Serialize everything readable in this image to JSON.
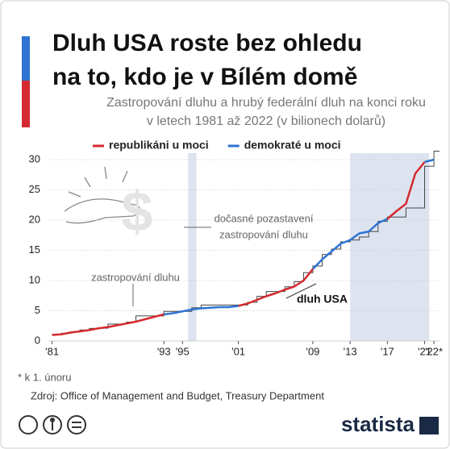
{
  "chart_data": {
    "type": "line",
    "title": [
      "Dluh USA roste bez ohledu",
      "na to, kdo je v Bílém domě"
    ],
    "subtitle": [
      "Zastropování dluhu a hrubý federální dluh na konci roku",
      "v letech 1981 až 2022 (v bilionech dolarů)"
    ],
    "x": [
      1981,
      1982,
      1983,
      1984,
      1985,
      1986,
      1987,
      1988,
      1989,
      1990,
      1991,
      1992,
      1993,
      1994,
      1995,
      1996,
      1997,
      1998,
      1999,
      2000,
      2001,
      2002,
      2003,
      2004,
      2005,
      2006,
      2007,
      2008,
      2009,
      2010,
      2011,
      2012,
      2013,
      2014,
      2015,
      2016,
      2017,
      2018,
      2019,
      2020,
      2021,
      2022
    ],
    "series": [
      {
        "name": "republikáni u moci",
        "color": "#d42a2f",
        "values": [
          1.0,
          1.1,
          1.4,
          1.6,
          1.8,
          2.1,
          2.3,
          2.6,
          2.9,
          3.2,
          3.6,
          4.0,
          4.4,
          null,
          null,
          null,
          null,
          null,
          null,
          null,
          5.8,
          6.2,
          6.8,
          7.4,
          7.9,
          8.5,
          9.0,
          10.0,
          11.9,
          null,
          null,
          null,
          null,
          null,
          null,
          null,
          20.2,
          21.5,
          22.7,
          27.7,
          29.6,
          null
        ]
      },
      {
        "name": "demokraté u moci",
        "color": "#2e73d2",
        "values": [
          null,
          null,
          null,
          null,
          null,
          null,
          null,
          null,
          null,
          null,
          null,
          null,
          4.4,
          4.6,
          4.9,
          5.2,
          5.4,
          5.5,
          5.6,
          5.6,
          5.8,
          null,
          null,
          null,
          null,
          null,
          null,
          null,
          11.9,
          13.5,
          14.8,
          16.1,
          16.7,
          17.8,
          18.1,
          19.5,
          20.2,
          null,
          null,
          null,
          29.6,
          30.0
        ]
      }
    ],
    "debt_ceiling": {
      "label": "zastropování dluhu",
      "color": "#444444",
      "values": [
        1.08,
        1.29,
        1.49,
        1.82,
        2.08,
        2.11,
        2.8,
        2.8,
        3.12,
        4.15,
        4.15,
        4.15,
        4.9,
        4.9,
        4.9,
        5.5,
        5.95,
        5.95,
        5.95,
        5.95,
        5.95,
        6.4,
        7.38,
        8.18,
        8.18,
        8.97,
        9.82,
        11.3,
        12.4,
        14.3,
        15.2,
        16.4,
        16.7,
        17.2,
        18.1,
        19.8,
        20.5,
        20.5,
        22.0,
        22.0,
        28.9,
        31.4
      ]
    },
    "suspensions": {
      "label": [
        "dočasné pozastavení",
        "zastropování dluhu"
      ],
      "color": "#dde3ef",
      "spans": [
        [
          1995.6,
          1996.5
        ],
        [
          2013.0,
          2021.5
        ]
      ]
    },
    "line_label": "dluh USA",
    "xlim": [
      1980.6,
      2022.6
    ],
    "xticks": [
      {
        "value": 1981,
        "label": "'81"
      },
      {
        "value": 1993,
        "label": "'93"
      },
      {
        "value": 1995,
        "label": "'95"
      },
      {
        "value": 2001,
        "label": "'01"
      },
      {
        "value": 2009,
        "label": "'09"
      },
      {
        "value": 2013,
        "label": "'13"
      },
      {
        "value": 2017,
        "label": "'17"
      },
      {
        "value": 2021,
        "label": "'21"
      },
      {
        "value": 2022,
        "label": "'22*"
      }
    ],
    "ylim": [
      0,
      30
    ],
    "yticks": [
      0,
      5,
      10,
      15,
      20,
      25,
      30
    ],
    "grid": true,
    "legend": "top",
    "footnote": "* k 1. únoru",
    "source": "Zdroj: Office of Management and Budget, Treasury Department",
    "brand": "statista"
  }
}
